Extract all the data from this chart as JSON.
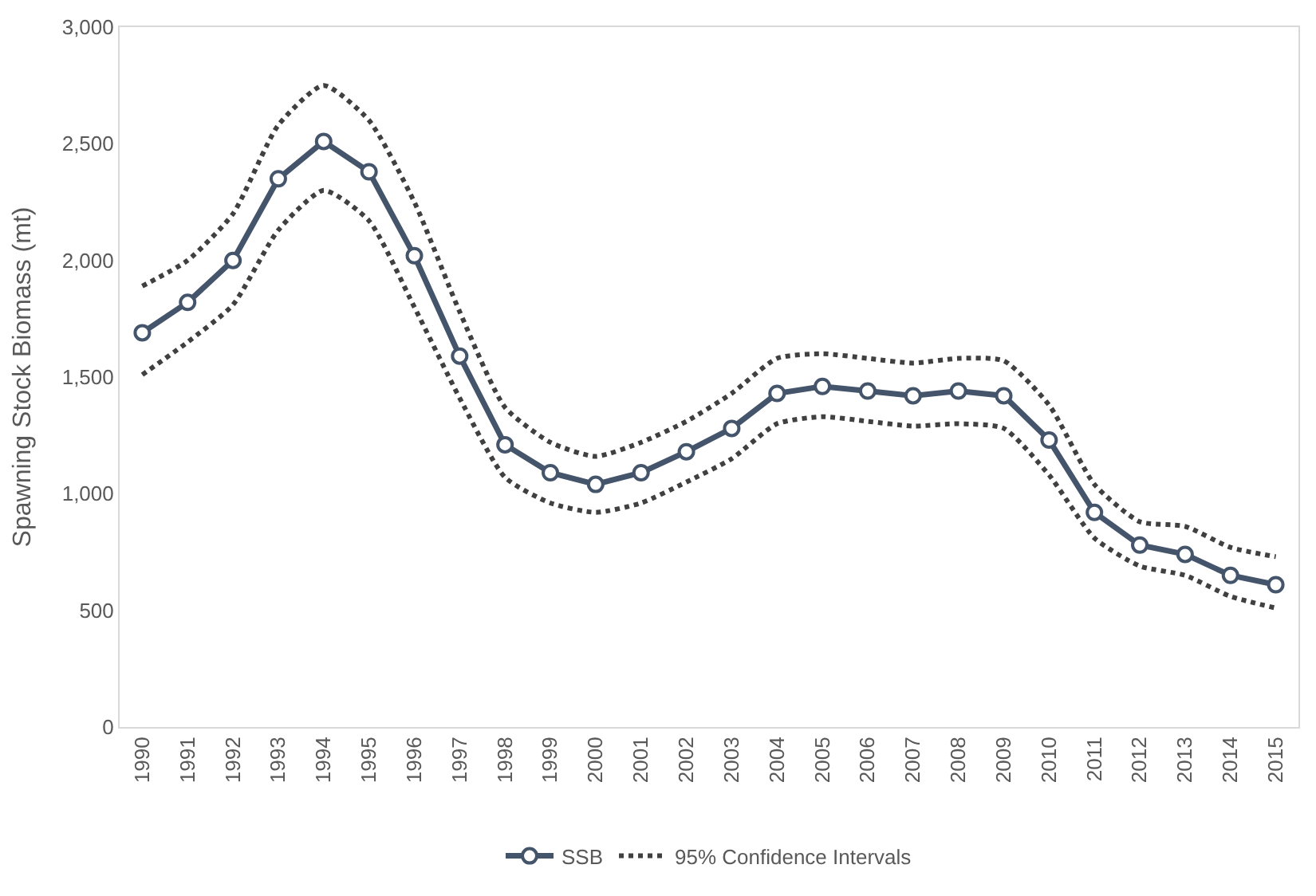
{
  "chart_data": {
    "type": "line",
    "ylabel": "Spawning Stock Biomass (mt)",
    "categories": [
      "1990",
      "1991",
      "1992",
      "1993",
      "1994",
      "1995",
      "1996",
      "1997",
      "1998",
      "1999",
      "2000",
      "2001",
      "2002",
      "2003",
      "2004",
      "2005",
      "2006",
      "2007",
      "2008",
      "2009",
      "2010",
      "2011",
      "2012",
      "2013",
      "2014",
      "2015"
    ],
    "series": [
      {
        "name": "SSB",
        "color": "#44546a",
        "marker": "circle",
        "line_style": "solid",
        "values": [
          1690,
          1820,
          2000,
          2350,
          2510,
          2380,
          2020,
          1590,
          1210,
          1090,
          1040,
          1090,
          1180,
          1280,
          1430,
          1460,
          1440,
          1420,
          1440,
          1420,
          1230,
          920,
          780,
          740,
          650,
          610
        ]
      },
      {
        "name": "95% Confidence Intervals",
        "color": "#404040",
        "marker": "none",
        "line_style": "dotted",
        "values": [
          1890,
          2000,
          2200,
          2580,
          2750,
          2600,
          2250,
          1780,
          1370,
          1220,
          1160,
          1220,
          1310,
          1430,
          1580,
          1600,
          1580,
          1560,
          1580,
          1570,
          1380,
          1040,
          880,
          860,
          770,
          730
        ]
      },
      {
        "color": "#404040",
        "marker": "none",
        "line_style": "dotted",
        "values": [
          1510,
          1650,
          1810,
          2130,
          2300,
          2170,
          1800,
          1410,
          1070,
          960,
          920,
          960,
          1050,
          1150,
          1300,
          1330,
          1310,
          1290,
          1300,
          1280,
          1080,
          810,
          690,
          650,
          560,
          510
        ]
      }
    ],
    "ylim": [
      0,
      3000
    ],
    "yticks": [
      {
        "value": 0,
        "label": "0"
      },
      {
        "value": 500,
        "label": "500"
      },
      {
        "value": 1000,
        "label": "1,000"
      },
      {
        "value": 1500,
        "label": "1,500"
      },
      {
        "value": 2000,
        "label": "2,000"
      },
      {
        "value": 2500,
        "label": "2,500"
      },
      {
        "value": 3000,
        "label": "3,000"
      }
    ],
    "legend": "bottom"
  }
}
